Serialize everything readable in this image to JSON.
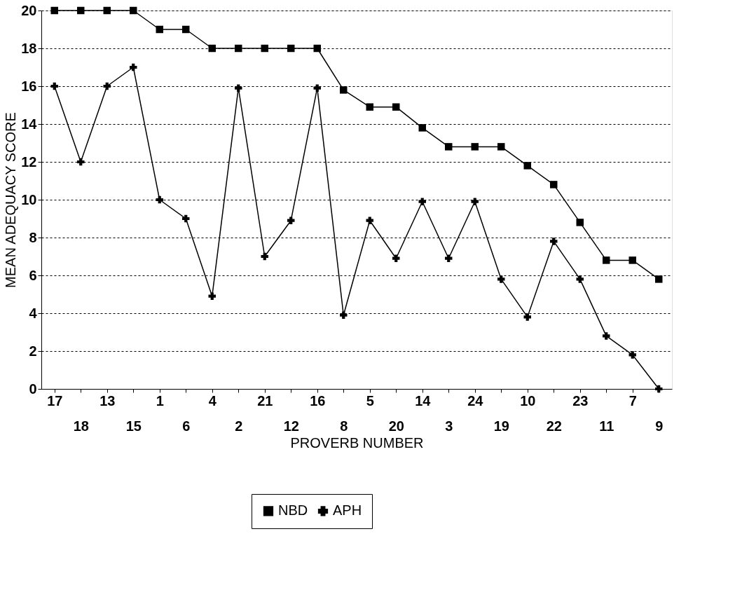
{
  "chart_data": {
    "type": "line",
    "xlabel": "PROVERB NUMBER",
    "ylabel": "MEAN ADEQUACY SCORE",
    "categories": [
      "17",
      "18",
      "13",
      "15",
      "1",
      "6",
      "4",
      "2",
      "21",
      "12",
      "16",
      "8",
      "5",
      "20",
      "14",
      "3",
      "24",
      "19",
      "10",
      "22",
      "23",
      "11",
      "7",
      "9"
    ],
    "series": [
      {
        "name": "NBD",
        "color": "#000000",
        "marker": "square",
        "values": [
          20,
          20,
          20,
          20,
          19,
          19,
          18,
          18,
          18,
          18,
          18,
          15.8,
          14.9,
          14.9,
          13.8,
          12.8,
          12.8,
          12.8,
          11.8,
          10.8,
          8.8,
          6.8,
          6.8,
          5.8
        ]
      },
      {
        "name": "APH",
        "color": "#000000",
        "marker": "cross",
        "values": [
          16,
          12,
          16,
          17,
          10,
          9,
          4.9,
          15.9,
          7,
          8.9,
          15.9,
          3.9,
          8.9,
          6.9,
          9.9,
          6.9,
          9.9,
          5.8,
          3.8,
          7.8,
          5.8,
          2.8,
          1.8,
          0
        ]
      }
    ],
    "ylim": [
      0,
      20
    ],
    "yticks": [
      0,
      2,
      4,
      6,
      8,
      10,
      12,
      14,
      16,
      18,
      20
    ],
    "grid": "y",
    "legend": "bottom",
    "line_style": "solid"
  }
}
